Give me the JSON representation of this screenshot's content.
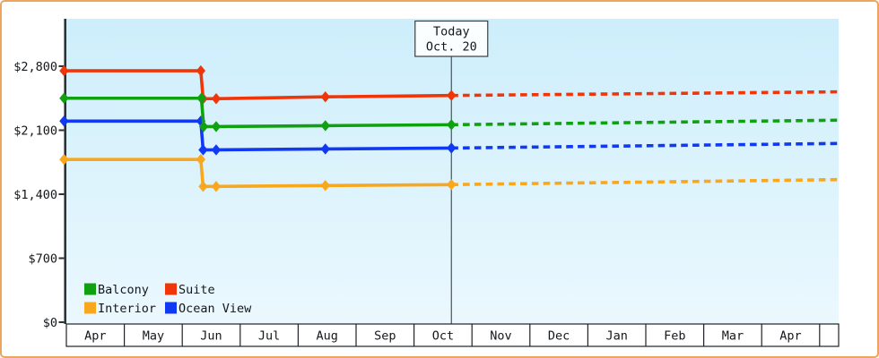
{
  "frame": {
    "border_color": "#eca55f",
    "background": "#ffffff"
  },
  "plot": {
    "bg_top_color": "#cdeefb",
    "bg_bottom_color": "#ebf8fe",
    "axis_color": "#2e3236",
    "text_color": "#14171a",
    "today_line_color": "#4d5256",
    "today_box_fill": "#fbfeff",
    "today_box_border": "#3a3e42",
    "month_row_fill": "#ffffff",
    "month_row_border": "#1f2327"
  },
  "chart_data": {
    "type": "line",
    "title": "",
    "x_unit": "months_from_apr_1",
    "x_categories": [
      "Apr",
      "May",
      "Jun",
      "Jul",
      "Aug",
      "Sep",
      "Oct",
      "Nov",
      "Dec",
      "Jan",
      "Feb",
      "Mar",
      "Apr"
    ],
    "y_ticks": [
      {
        "value": 0,
        "label": "$0"
      },
      {
        "value": 700,
        "label": "$700"
      },
      {
        "value": 1400,
        "label": "$1,400"
      },
      {
        "value": 2100,
        "label": "$2,100"
      },
      {
        "value": 2800,
        "label": "$2,800"
      }
    ],
    "ylim": [
      0,
      2800
    ],
    "grid": false,
    "legend_position": "bottom-left-inside",
    "today": {
      "label": "Today",
      "date": "Oct. 20",
      "month_offset": 6.645
    },
    "series": [
      {
        "name": "Suite",
        "color": "#f03608",
        "solid_points": [
          [
            -0.04,
            2750
          ],
          [
            2.32,
            2750
          ],
          [
            2.36,
            2445
          ],
          [
            2.585,
            2445
          ],
          [
            4.47,
            2465
          ],
          [
            6.645,
            2480
          ]
        ],
        "projected_points": [
          [
            6.645,
            2480
          ],
          [
            13.33,
            2520
          ]
        ]
      },
      {
        "name": "Ocean View",
        "color": "#1139f2",
        "solid_points": [
          [
            -0.04,
            2200
          ],
          [
            2.32,
            2200
          ],
          [
            2.36,
            1885
          ],
          [
            2.585,
            1885
          ],
          [
            4.47,
            1895
          ],
          [
            6.645,
            1905
          ]
        ],
        "projected_points": [
          [
            6.645,
            1905
          ],
          [
            13.33,
            1955
          ]
        ]
      },
      {
        "name": "Balcony",
        "color": "#10a110",
        "solid_points": [
          [
            -0.04,
            2450
          ],
          [
            2.33,
            2450
          ],
          [
            2.37,
            2140
          ],
          [
            2.585,
            2140
          ],
          [
            4.47,
            2150
          ],
          [
            6.645,
            2160
          ]
        ],
        "projected_points": [
          [
            6.645,
            2160
          ],
          [
            13.33,
            2210
          ]
        ]
      },
      {
        "name": "Interior",
        "color": "#f9a71d",
        "solid_points": [
          [
            -0.04,
            1780
          ],
          [
            2.32,
            1780
          ],
          [
            2.36,
            1485
          ],
          [
            2.585,
            1485
          ],
          [
            4.47,
            1495
          ],
          [
            6.645,
            1505
          ]
        ],
        "projected_points": [
          [
            6.645,
            1505
          ],
          [
            13.33,
            1560
          ]
        ]
      }
    ],
    "legend": [
      {
        "label": "Balcony",
        "color": "#10a110"
      },
      {
        "label": "Suite",
        "color": "#f03608"
      },
      {
        "label": "Interior",
        "color": "#f9a71d"
      },
      {
        "label": "Ocean View",
        "color": "#1139f2"
      }
    ]
  }
}
